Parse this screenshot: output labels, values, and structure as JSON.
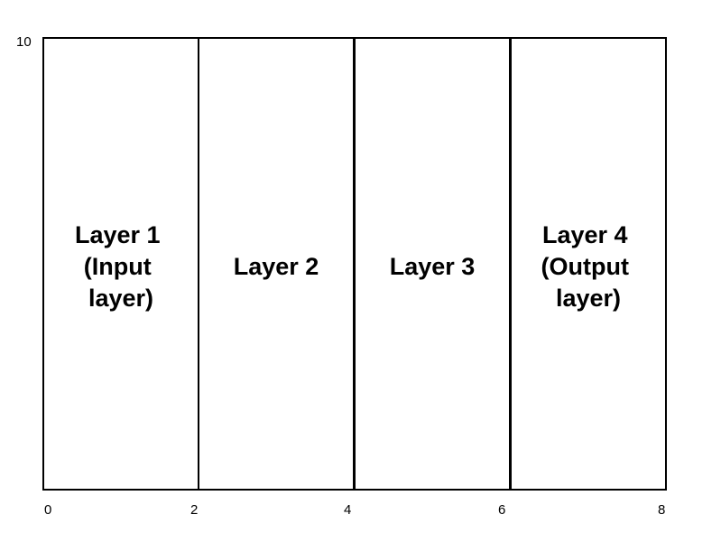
{
  "diagram": {
    "y_tick_top": "10",
    "x_ticks": [
      "0",
      "2",
      "4",
      "6",
      "8"
    ],
    "layers": [
      {
        "lines": [
          "Layer 1",
          "(Input",
          "layer)"
        ]
      },
      {
        "lines": [
          "Layer 2"
        ]
      },
      {
        "lines": [
          "Layer 3"
        ]
      },
      {
        "lines": [
          "Layer 4",
          "(Output",
          "layer)"
        ]
      }
    ]
  },
  "colors": {
    "line": "#000000",
    "background": "#ffffff",
    "text": "#000000"
  }
}
